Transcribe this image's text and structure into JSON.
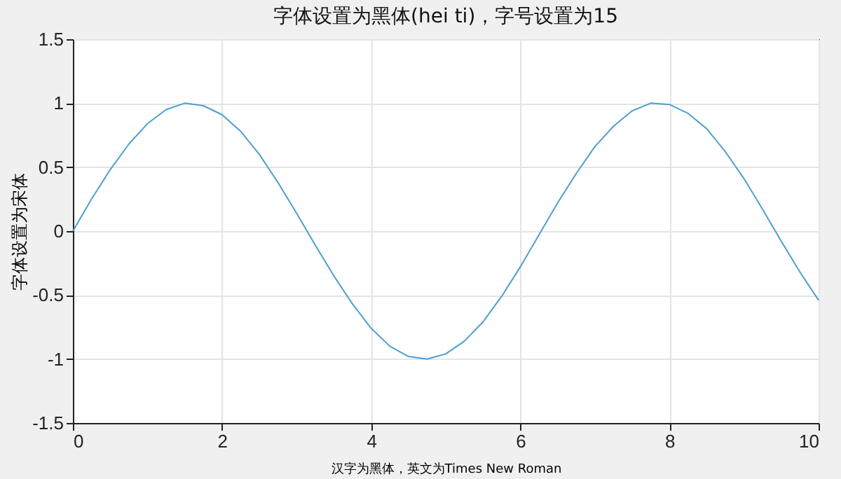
{
  "chart_data": {
    "type": "line",
    "title": "字体设置为黑体(hei ti)，字号设置为15",
    "xlabel": "汉字为黑体，英文为Times New Roman",
    "ylabel": "字体设置为宋体",
    "x": [
      0,
      0.25,
      0.5,
      0.75,
      1,
      1.25,
      1.5,
      1.75,
      2,
      2.25,
      2.5,
      2.75,
      3,
      3.25,
      3.5,
      3.75,
      4,
      4.25,
      4.5,
      4.75,
      5,
      5.25,
      5.5,
      5.75,
      6,
      6.25,
      6.5,
      6.75,
      7,
      7.25,
      7.5,
      7.75,
      8,
      8.25,
      8.5,
      8.75,
      9,
      9.25,
      9.5,
      9.75,
      10
    ],
    "series": [
      {
        "color": "#4d9fd0",
        "values": [
          0,
          0.25,
          0.48,
          0.68,
          0.84,
          0.95,
          1.0,
          0.98,
          0.91,
          0.78,
          0.6,
          0.38,
          0.14,
          -0.11,
          -0.35,
          -0.57,
          -0.76,
          -0.9,
          -0.98,
          -1.0,
          -0.96,
          -0.86,
          -0.71,
          -0.51,
          -0.28,
          -0.03,
          0.22,
          0.45,
          0.66,
          0.82,
          0.94,
          1.0,
          0.99,
          0.92,
          0.8,
          0.62,
          0.41,
          0.17,
          -0.08,
          -0.32,
          -0.54
        ]
      }
    ],
    "xlim": [
      0,
      10
    ],
    "ylim": [
      -1.5,
      1.5
    ],
    "xticks": [
      0,
      2,
      4,
      6,
      8,
      10
    ],
    "yticks": [
      -1.5,
      {
        "value": -1,
        "label": "-1"
      },
      -0.5,
      {
        "value": 0,
        "label": "0"
      },
      0.5,
      {
        "value": 1,
        "label": "1"
      },
      1.5
    ],
    "grid": true
  }
}
